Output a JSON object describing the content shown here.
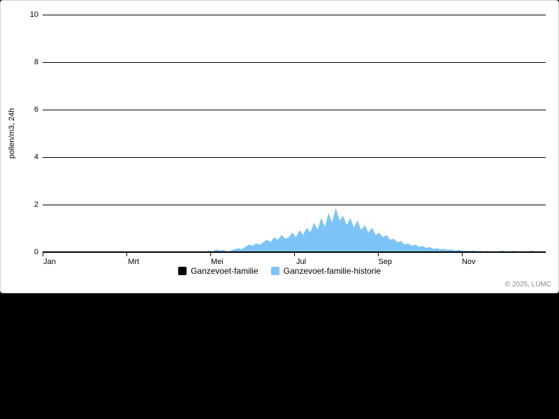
{
  "chart": {
    "type": "area",
    "background_color": "#ffffff",
    "page_background": "#000000",
    "grid_color": "#000000",
    "y_axis": {
      "title": "pollen/m3, 24h",
      "min": 0,
      "max": 10,
      "ticks": [
        0,
        2,
        4,
        6,
        8,
        10
      ],
      "label_fontsize": 11
    },
    "x_axis": {
      "ticks": [
        {
          "pos": 0.0,
          "label": "Jan"
        },
        {
          "pos": 0.167,
          "label": "Mrt"
        },
        {
          "pos": 0.333,
          "label": "Mei"
        },
        {
          "pos": 0.5,
          "label": "Jul"
        },
        {
          "pos": 0.667,
          "label": "Sep"
        },
        {
          "pos": 0.833,
          "label": "Nov"
        }
      ],
      "label_fontsize": 11
    },
    "series": [
      {
        "name": "Ganzevoet-familie",
        "color": "#000000",
        "values": []
      },
      {
        "name": "Ganzevoet-familie-historie",
        "color": "#7cc4f8",
        "fill_opacity": 1.0,
        "values": [
          0,
          0,
          0,
          0,
          0,
          0,
          0,
          0,
          0,
          0,
          0,
          0,
          0,
          0,
          0,
          0,
          0,
          0,
          0,
          0,
          0,
          0,
          0,
          0,
          0,
          0,
          0,
          0,
          0,
          0,
          0,
          0,
          0,
          0,
          0,
          0,
          0,
          0,
          0,
          0,
          0,
          0,
          0,
          0,
          0,
          0,
          0.05,
          0,
          0.1,
          0.05,
          0.08,
          0,
          0.05,
          0.1,
          0.15,
          0.1,
          0.2,
          0.3,
          0.25,
          0.35,
          0.3,
          0.4,
          0.5,
          0.4,
          0.6,
          0.5,
          0.7,
          0.55,
          0.6,
          0.8,
          0.6,
          0.9,
          0.7,
          1.0,
          0.8,
          1.2,
          0.9,
          1.4,
          1.0,
          1.6,
          1.2,
          1.8,
          1.3,
          1.5,
          1.1,
          1.4,
          1.0,
          1.3,
          0.9,
          1.1,
          0.8,
          1.0,
          0.7,
          0.8,
          0.6,
          0.7,
          0.5,
          0.55,
          0.4,
          0.45,
          0.3,
          0.35,
          0.25,
          0.3,
          0.2,
          0.25,
          0.15,
          0.2,
          0.12,
          0.15,
          0.1,
          0.12,
          0.08,
          0.1,
          0.05,
          0.08,
          0.04,
          0.05,
          0.03,
          0.05,
          0.02,
          0.04,
          0,
          0.03,
          0,
          0.02,
          0,
          0.05,
          0,
          0,
          0.04,
          0,
          0,
          0,
          0,
          0.05,
          0,
          0,
          0,
          0
        ]
      }
    ],
    "legend": {
      "position": "bottom",
      "fontsize": 12
    },
    "credits": "© 2025, LUMC"
  }
}
